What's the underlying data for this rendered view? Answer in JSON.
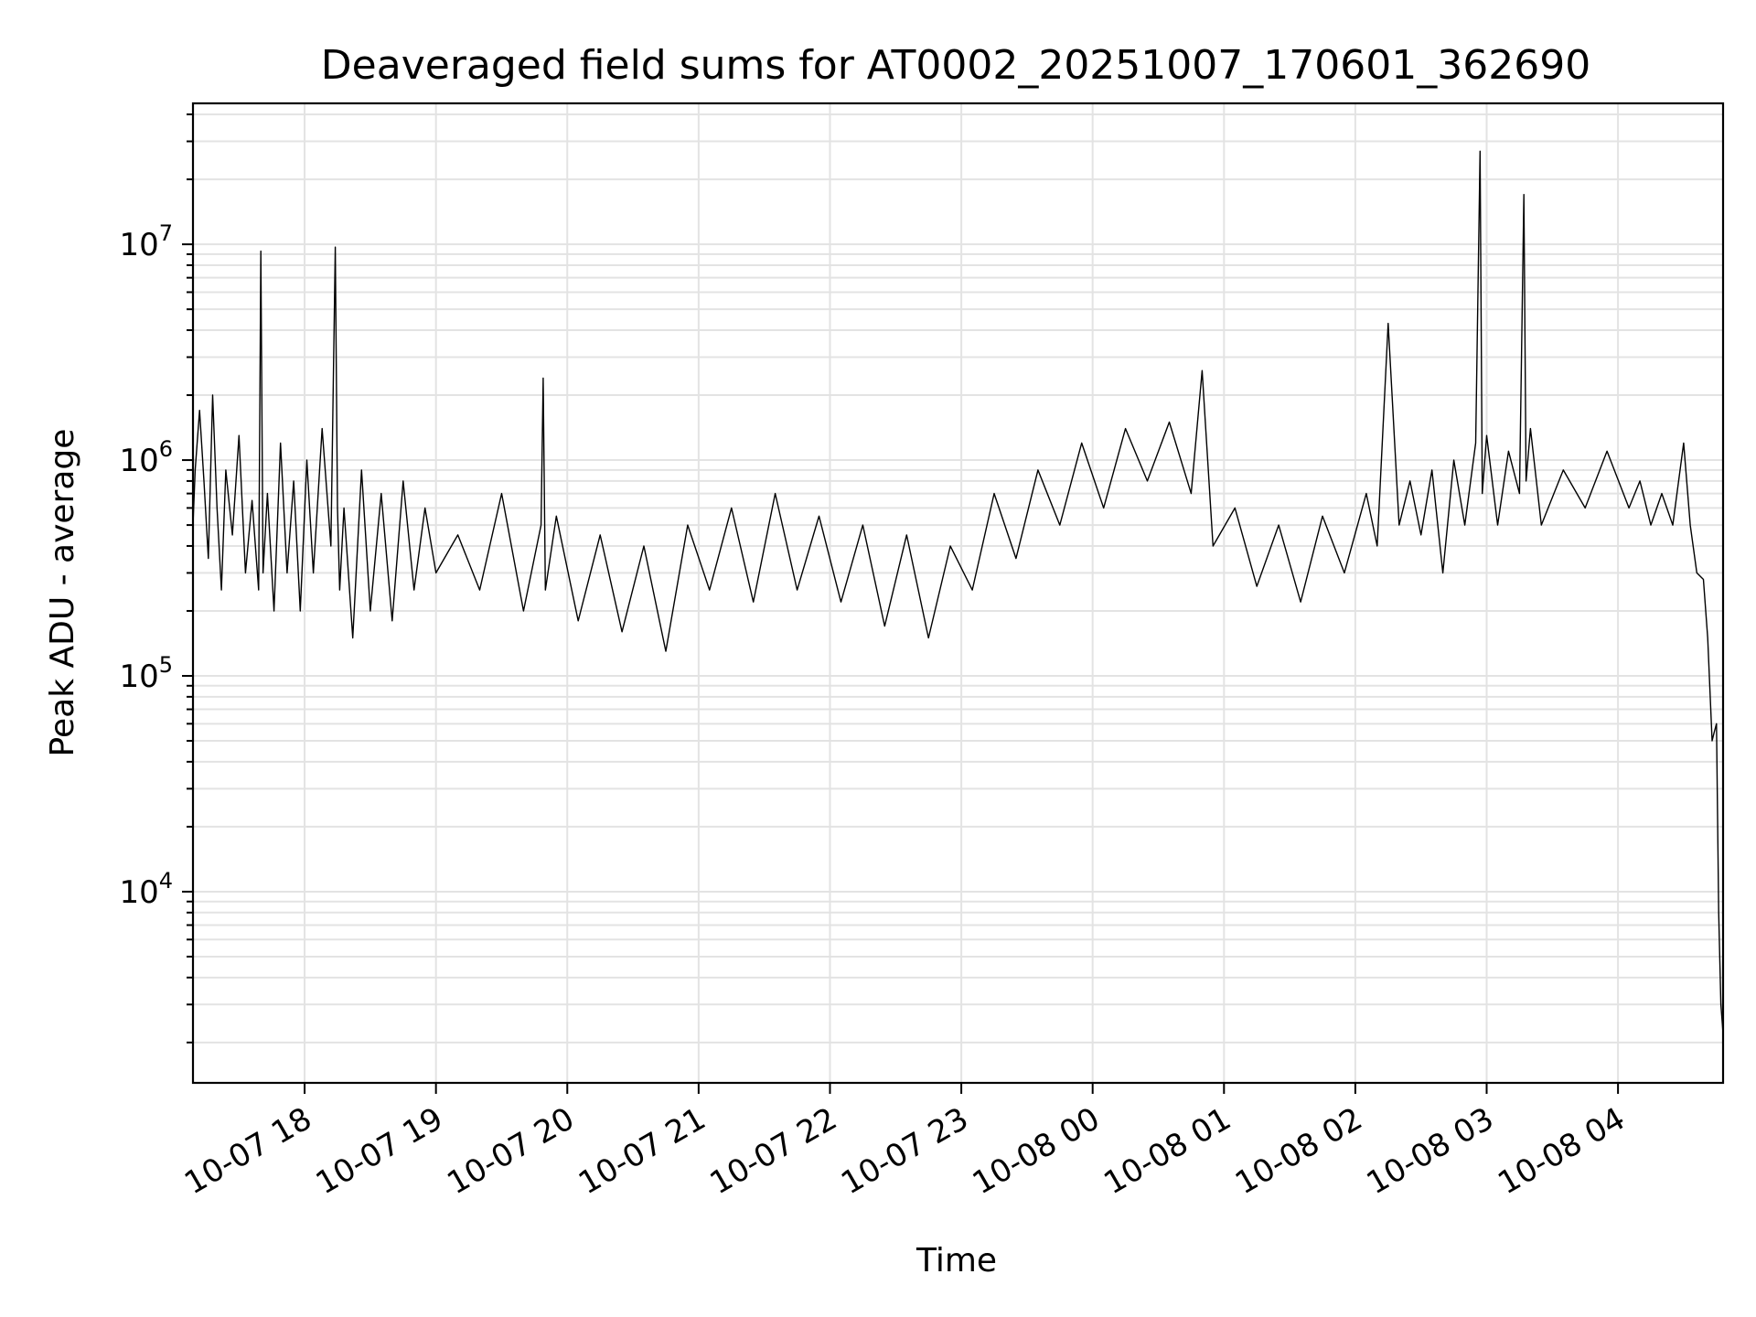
{
  "chart_data": {
    "type": "line",
    "title": "Deaveraged field sums for AT0002_20251007_170601_362690",
    "xlabel": "Time",
    "ylabel": "Peak ADU - average",
    "y_scale": "log",
    "ylim": [
      1300,
      45000000
    ],
    "xlim": [
      "2025-10-07 17:09",
      "2025-10-08 04:48"
    ],
    "grid": true,
    "line_color": "#000000",
    "x_tick_labels": [
      {
        "t": "2025-10-07 18:00",
        "label": "10-07 18"
      },
      {
        "t": "2025-10-07 19:00",
        "label": "10-07 19"
      },
      {
        "t": "2025-10-07 20:00",
        "label": "10-07 20"
      },
      {
        "t": "2025-10-07 21:00",
        "label": "10-07 21"
      },
      {
        "t": "2025-10-07 22:00",
        "label": "10-07 22"
      },
      {
        "t": "2025-10-07 23:00",
        "label": "10-07 23"
      },
      {
        "t": "2025-10-08 00:00",
        "label": "10-08 00"
      },
      {
        "t": "2025-10-08 01:00",
        "label": "10-08 01"
      },
      {
        "t": "2025-10-08 02:00",
        "label": "10-08 02"
      },
      {
        "t": "2025-10-08 03:00",
        "label": "10-08 03"
      },
      {
        "t": "2025-10-08 04:00",
        "label": "10-08 04"
      }
    ],
    "y_tick_labels": [
      {
        "value": 10000,
        "base": "10",
        "exp": "4"
      },
      {
        "value": 100000,
        "base": "10",
        "exp": "5"
      },
      {
        "value": 1000000,
        "base": "10",
        "exp": "6"
      },
      {
        "value": 10000000,
        "base": "10",
        "exp": "7"
      }
    ],
    "series": [
      {
        "x": [
          "2025-10-07 17:09",
          "2025-10-07 17:10",
          "2025-10-07 17:12",
          "2025-10-07 17:14",
          "2025-10-07 17:16",
          "2025-10-07 17:18",
          "2025-10-07 17:20",
          "2025-10-07 17:22",
          "2025-10-07 17:24",
          "2025-10-07 17:27",
          "2025-10-07 17:30",
          "2025-10-07 17:33",
          "2025-10-07 17:36",
          "2025-10-07 17:39",
          "2025-10-07 17:40",
          "2025-10-07 17:41",
          "2025-10-07 17:43",
          "2025-10-07 17:46",
          "2025-10-07 17:49",
          "2025-10-07 17:52",
          "2025-10-07 17:55",
          "2025-10-07 17:58",
          "2025-10-07 18:01",
          "2025-10-07 18:04",
          "2025-10-07 18:08",
          "2025-10-07 18:12",
          "2025-10-07 18:14",
          "2025-10-07 18:15",
          "2025-10-07 18:16",
          "2025-10-07 18:18",
          "2025-10-07 18:22",
          "2025-10-07 18:26",
          "2025-10-07 18:30",
          "2025-10-07 18:35",
          "2025-10-07 18:40",
          "2025-10-07 18:45",
          "2025-10-07 18:50",
          "2025-10-07 18:55",
          "2025-10-07 19:00",
          "2025-10-07 19:10",
          "2025-10-07 19:20",
          "2025-10-07 19:30",
          "2025-10-07 19:40",
          "2025-10-07 19:48",
          "2025-10-07 19:49",
          "2025-10-07 19:50",
          "2025-10-07 19:55",
          "2025-10-07 20:05",
          "2025-10-07 20:15",
          "2025-10-07 20:25",
          "2025-10-07 20:35",
          "2025-10-07 20:45",
          "2025-10-07 20:55",
          "2025-10-07 21:05",
          "2025-10-07 21:15",
          "2025-10-07 21:25",
          "2025-10-07 21:35",
          "2025-10-07 21:45",
          "2025-10-07 21:55",
          "2025-10-07 22:05",
          "2025-10-07 22:15",
          "2025-10-07 22:25",
          "2025-10-07 22:35",
          "2025-10-07 22:45",
          "2025-10-07 22:55",
          "2025-10-07 23:05",
          "2025-10-07 23:15",
          "2025-10-07 23:25",
          "2025-10-07 23:35",
          "2025-10-07 23:45",
          "2025-10-07 23:55",
          "2025-10-08 00:05",
          "2025-10-08 00:15",
          "2025-10-08 00:25",
          "2025-10-08 00:35",
          "2025-10-08 00:45",
          "2025-10-08 00:50",
          "2025-10-08 00:55",
          "2025-10-08 01:05",
          "2025-10-08 01:15",
          "2025-10-08 01:25",
          "2025-10-08 01:35",
          "2025-10-08 01:45",
          "2025-10-08 01:55",
          "2025-10-08 02:05",
          "2025-10-08 02:10",
          "2025-10-08 02:15",
          "2025-10-08 02:20",
          "2025-10-08 02:25",
          "2025-10-08 02:30",
          "2025-10-08 02:35",
          "2025-10-08 02:40",
          "2025-10-08 02:45",
          "2025-10-08 02:50",
          "2025-10-08 02:55",
          "2025-10-08 02:57",
          "2025-10-08 02:58",
          "2025-10-08 03:00",
          "2025-10-08 03:05",
          "2025-10-08 03:10",
          "2025-10-08 03:15",
          "2025-10-08 03:17",
          "2025-10-08 03:18",
          "2025-10-08 03:20",
          "2025-10-08 03:25",
          "2025-10-08 03:35",
          "2025-10-08 03:45",
          "2025-10-08 03:55",
          "2025-10-08 04:05",
          "2025-10-08 04:10",
          "2025-10-08 04:15",
          "2025-10-08 04:20",
          "2025-10-08 04:25",
          "2025-10-08 04:30",
          "2025-10-08 04:33",
          "2025-10-08 04:36",
          "2025-10-08 04:39",
          "2025-10-08 04:41",
          "2025-10-08 04:43",
          "2025-10-08 04:44",
          "2025-10-08 04:45",
          "2025-10-08 04:46",
          "2025-10-08 04:47",
          "2025-10-08 04:48"
        ],
        "values": [
          500000,
          900000,
          1700000,
          800000,
          350000,
          2000000,
          600000,
          250000,
          900000,
          450000,
          1300000,
          300000,
          650000,
          250000,
          9300000,
          300000,
          700000,
          200000,
          1200000,
          300000,
          800000,
          200000,
          1000000,
          300000,
          1400000,
          400000,
          9700000,
          600000,
          250000,
          600000,
          150000,
          900000,
          200000,
          700000,
          180000,
          800000,
          250000,
          600000,
          300000,
          450000,
          250000,
          700000,
          200000,
          500000,
          2400000,
          250000,
          550000,
          180000,
          450000,
          160000,
          400000,
          130000,
          500000,
          250000,
          600000,
          220000,
          700000,
          250000,
          550000,
          220000,
          500000,
          170000,
          450000,
          150000,
          400000,
          250000,
          700000,
          350000,
          900000,
          500000,
          1200000,
          600000,
          1400000,
          800000,
          1500000,
          700000,
          2600000,
          400000,
          600000,
          260000,
          500000,
          220000,
          550000,
          300000,
          700000,
          400000,
          4300000,
          500000,
          800000,
          450000,
          900000,
          300000,
          1000000,
          500000,
          1200000,
          27000000,
          700000,
          1300000,
          500000,
          1100000,
          700000,
          17000000,
          800000,
          1400000,
          500000,
          900000,
          600000,
          1100000,
          600000,
          800000,
          500000,
          700000,
          500000,
          1200000,
          500000,
          300000,
          280000,
          150000,
          50000,
          55000,
          60000,
          8000,
          3000,
          2200
        ]
      }
    ]
  }
}
